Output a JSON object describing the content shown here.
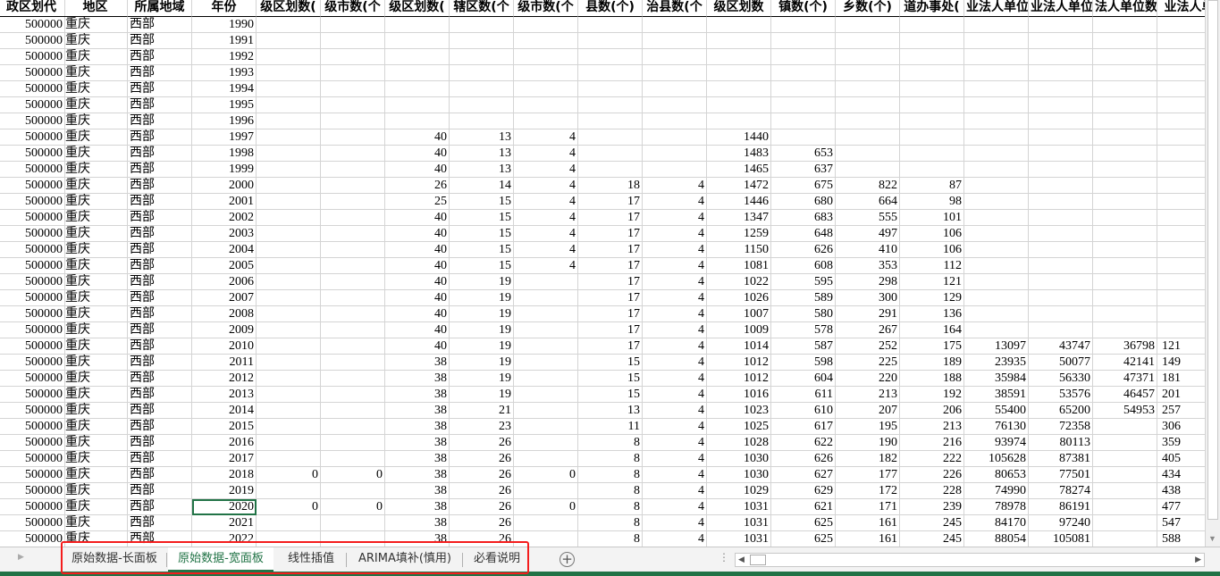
{
  "sheet": {
    "headers": [
      "政区划代",
      "地区",
      "所属地域",
      "年份",
      "级区划数(",
      "级市数(个",
      "级区划数(",
      "辖区数(个",
      "级市数(个",
      "县数(个)",
      "治县数(个",
      "级区划数",
      "镇数(个)",
      "乡数(个)",
      "道办事处(",
      "业法人单位",
      "业法人单位",
      "法人单位数",
      "业法人单"
    ],
    "selected_cell": {
      "year": "2020",
      "column": "年份"
    },
    "rows": [
      [
        "500000",
        "重庆",
        "西部",
        "1990",
        "",
        "",
        "",
        "",
        "",
        "",
        "",
        "",
        "",
        "",
        "",
        "",
        "",
        "",
        ""
      ],
      [
        "500000",
        "重庆",
        "西部",
        "1991",
        "",
        "",
        "",
        "",
        "",
        "",
        "",
        "",
        "",
        "",
        "",
        "",
        "",
        "",
        ""
      ],
      [
        "500000",
        "重庆",
        "西部",
        "1992",
        "",
        "",
        "",
        "",
        "",
        "",
        "",
        "",
        "",
        "",
        "",
        "",
        "",
        "",
        ""
      ],
      [
        "500000",
        "重庆",
        "西部",
        "1993",
        "",
        "",
        "",
        "",
        "",
        "",
        "",
        "",
        "",
        "",
        "",
        "",
        "",
        "",
        ""
      ],
      [
        "500000",
        "重庆",
        "西部",
        "1994",
        "",
        "",
        "",
        "",
        "",
        "",
        "",
        "",
        "",
        "",
        "",
        "",
        "",
        "",
        ""
      ],
      [
        "500000",
        "重庆",
        "西部",
        "1995",
        "",
        "",
        "",
        "",
        "",
        "",
        "",
        "",
        "",
        "",
        "",
        "",
        "",
        "",
        ""
      ],
      [
        "500000",
        "重庆",
        "西部",
        "1996",
        "",
        "",
        "",
        "",
        "",
        "",
        "",
        "",
        "",
        "",
        "",
        "",
        "",
        "",
        ""
      ],
      [
        "500000",
        "重庆",
        "西部",
        "1997",
        "",
        "",
        "40",
        "13",
        "4",
        "",
        "",
        "1440",
        "",
        "",
        "",
        "",
        "",
        "",
        ""
      ],
      [
        "500000",
        "重庆",
        "西部",
        "1998",
        "",
        "",
        "40",
        "13",
        "4",
        "",
        "",
        "1483",
        "653",
        "",
        "",
        "",
        "",
        "",
        ""
      ],
      [
        "500000",
        "重庆",
        "西部",
        "1999",
        "",
        "",
        "40",
        "13",
        "4",
        "",
        "",
        "1465",
        "637",
        "",
        "",
        "",
        "",
        "",
        ""
      ],
      [
        "500000",
        "重庆",
        "西部",
        "2000",
        "",
        "",
        "26",
        "14",
        "4",
        "18",
        "4",
        "1472",
        "675",
        "822",
        "87",
        "",
        "",
        "",
        ""
      ],
      [
        "500000",
        "重庆",
        "西部",
        "2001",
        "",
        "",
        "25",
        "15",
        "4",
        "17",
        "4",
        "1446",
        "680",
        "664",
        "98",
        "",
        "",
        "",
        ""
      ],
      [
        "500000",
        "重庆",
        "西部",
        "2002",
        "",
        "",
        "40",
        "15",
        "4",
        "17",
        "4",
        "1347",
        "683",
        "555",
        "101",
        "",
        "",
        "",
        ""
      ],
      [
        "500000",
        "重庆",
        "西部",
        "2003",
        "",
        "",
        "40",
        "15",
        "4",
        "17",
        "4",
        "1259",
        "648",
        "497",
        "106",
        "",
        "",
        "",
        ""
      ],
      [
        "500000",
        "重庆",
        "西部",
        "2004",
        "",
        "",
        "40",
        "15",
        "4",
        "17",
        "4",
        "1150",
        "626",
        "410",
        "106",
        "",
        "",
        "",
        ""
      ],
      [
        "500000",
        "重庆",
        "西部",
        "2005",
        "",
        "",
        "40",
        "15",
        "4",
        "17",
        "4",
        "1081",
        "608",
        "353",
        "112",
        "",
        "",
        "",
        ""
      ],
      [
        "500000",
        "重庆",
        "西部",
        "2006",
        "",
        "",
        "40",
        "19",
        "",
        "17",
        "4",
        "1022",
        "595",
        "298",
        "121",
        "",
        "",
        "",
        ""
      ],
      [
        "500000",
        "重庆",
        "西部",
        "2007",
        "",
        "",
        "40",
        "19",
        "",
        "17",
        "4",
        "1026",
        "589",
        "300",
        "129",
        "",
        "",
        "",
        ""
      ],
      [
        "500000",
        "重庆",
        "西部",
        "2008",
        "",
        "",
        "40",
        "19",
        "",
        "17",
        "4",
        "1007",
        "580",
        "291",
        "136",
        "",
        "",
        "",
        ""
      ],
      [
        "500000",
        "重庆",
        "西部",
        "2009",
        "",
        "",
        "40",
        "19",
        "",
        "17",
        "4",
        "1009",
        "578",
        "267",
        "164",
        "",
        "",
        "",
        ""
      ],
      [
        "500000",
        "重庆",
        "西部",
        "2010",
        "",
        "",
        "40",
        "19",
        "",
        "17",
        "4",
        "1014",
        "587",
        "252",
        "175",
        "13097",
        "43747",
        "36798",
        "121"
      ],
      [
        "500000",
        "重庆",
        "西部",
        "2011",
        "",
        "",
        "38",
        "19",
        "",
        "15",
        "4",
        "1012",
        "598",
        "225",
        "189",
        "23935",
        "50077",
        "42141",
        "149"
      ],
      [
        "500000",
        "重庆",
        "西部",
        "2012",
        "",
        "",
        "38",
        "19",
        "",
        "15",
        "4",
        "1012",
        "604",
        "220",
        "188",
        "35984",
        "56330",
        "47371",
        "181"
      ],
      [
        "500000",
        "重庆",
        "西部",
        "2013",
        "",
        "",
        "38",
        "19",
        "",
        "15",
        "4",
        "1016",
        "611",
        "213",
        "192",
        "38591",
        "53576",
        "46457",
        "201"
      ],
      [
        "500000",
        "重庆",
        "西部",
        "2014",
        "",
        "",
        "38",
        "21",
        "",
        "13",
        "4",
        "1023",
        "610",
        "207",
        "206",
        "55400",
        "65200",
        "54953",
        "257"
      ],
      [
        "500000",
        "重庆",
        "西部",
        "2015",
        "",
        "",
        "38",
        "23",
        "",
        "11",
        "4",
        "1025",
        "617",
        "195",
        "213",
        "76130",
        "72358",
        "",
        "306"
      ],
      [
        "500000",
        "重庆",
        "西部",
        "2016",
        "",
        "",
        "38",
        "26",
        "",
        "8",
        "4",
        "1028",
        "622",
        "190",
        "216",
        "93974",
        "80113",
        "",
        "359"
      ],
      [
        "500000",
        "重庆",
        "西部",
        "2017",
        "",
        "",
        "38",
        "26",
        "",
        "8",
        "4",
        "1030",
        "626",
        "182",
        "222",
        "105628",
        "87381",
        "",
        "405"
      ],
      [
        "500000",
        "重庆",
        "西部",
        "2018",
        "0",
        "0",
        "38",
        "26",
        "0",
        "8",
        "4",
        "1030",
        "627",
        "177",
        "226",
        "80653",
        "77501",
        "",
        "434"
      ],
      [
        "500000",
        "重庆",
        "西部",
        "2019",
        "",
        "",
        "38",
        "26",
        "",
        "8",
        "4",
        "1029",
        "629",
        "172",
        "228",
        "74990",
        "78274",
        "",
        "438"
      ],
      [
        "500000",
        "重庆",
        "西部",
        "2020",
        "0",
        "0",
        "38",
        "26",
        "0",
        "8",
        "4",
        "1031",
        "621",
        "171",
        "239",
        "78978",
        "86191",
        "",
        "477"
      ],
      [
        "500000",
        "重庆",
        "西部",
        "2021",
        "",
        "",
        "38",
        "26",
        "",
        "8",
        "4",
        "1031",
        "625",
        "161",
        "245",
        "84170",
        "97240",
        "",
        "547"
      ],
      [
        "500000",
        "重庆",
        "西部",
        "2022",
        "",
        "",
        "38",
        "26",
        "",
        "8",
        "4",
        "1031",
        "625",
        "161",
        "245",
        "88054",
        "105081",
        "",
        "588"
      ]
    ]
  },
  "tabs": [
    {
      "label": "原始数据-长面板",
      "active": false
    },
    {
      "label": "原始数据-宽面板",
      "active": true
    },
    {
      "label": "线性插值",
      "active": false
    },
    {
      "label": "ARIMA填补(慎用)",
      "active": false
    },
    {
      "label": "必看说明",
      "active": false
    }
  ],
  "icons": {
    "add_sheet": "plus-circle-icon",
    "more": "ellipsis-icon"
  },
  "colors": {
    "accent": "#217346",
    "highlight_box": "#f41c1c",
    "gridline": "#d4d4d4"
  }
}
